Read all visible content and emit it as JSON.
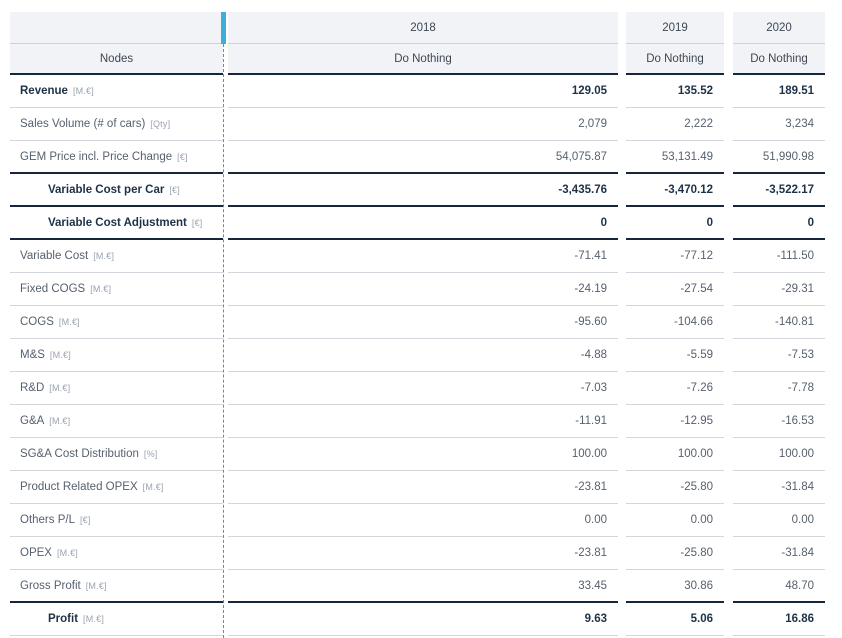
{
  "colors": {
    "accent_blue": "#3caede",
    "divider_blue": "#2e9fd0",
    "dark_navy": "#17273b",
    "header_bg": "#f2f3f6",
    "row_separator": "#d3d7dd",
    "bold_text": "#1d3147",
    "regular_text": "#57606d",
    "unit_text": "#9aa3b0"
  },
  "table": {
    "nodes_header": "Nodes",
    "scenario_label": "Do Nothing",
    "year_columns": [
      "2018",
      "2019",
      "2020"
    ],
    "rows": [
      {
        "label": "Revenue",
        "unit": "[M.€]",
        "style": "bold",
        "indent": false,
        "border_bottom": "light",
        "values": [
          "129.05",
          "135.52",
          "189.51"
        ]
      },
      {
        "label": "Sales Volume (# of cars)",
        "unit": "[Qty]",
        "style": "regular",
        "indent": false,
        "border_bottom": "light",
        "values": [
          "2,079",
          "2,222",
          "3,234"
        ]
      },
      {
        "label": "GEM Price incl. Price Change",
        "unit": "[€]",
        "style": "regular",
        "indent": false,
        "border_bottom": "dark",
        "values": [
          "54,075.87",
          "53,131.49",
          "51,990.98"
        ]
      },
      {
        "label": "Variable Cost per Car",
        "unit": "[€]",
        "style": "bold",
        "indent": true,
        "border_bottom": "dark",
        "values": [
          "-3,435.76",
          "-3,470.12",
          "-3,522.17"
        ]
      },
      {
        "label": "Variable Cost Adjustment",
        "unit": "[€]",
        "style": "bold",
        "indent": true,
        "border_bottom": "dark",
        "values": [
          "0",
          "0",
          "0"
        ]
      },
      {
        "label": "Variable Cost",
        "unit": "[M.€]",
        "style": "regular",
        "indent": false,
        "border_bottom": "light",
        "values": [
          "-71.41",
          "-77.12",
          "-111.50"
        ]
      },
      {
        "label": "Fixed COGS",
        "unit": "[M.€]",
        "style": "regular",
        "indent": false,
        "border_bottom": "light",
        "values": [
          "-24.19",
          "-27.54",
          "-29.31"
        ]
      },
      {
        "label": "COGS",
        "unit": "[M.€]",
        "style": "regular",
        "indent": false,
        "border_bottom": "light",
        "values": [
          "-95.60",
          "-104.66",
          "-140.81"
        ]
      },
      {
        "label": "M&S",
        "unit": "[M.€]",
        "style": "regular",
        "indent": false,
        "border_bottom": "light",
        "values": [
          "-4.88",
          "-5.59",
          "-7.53"
        ]
      },
      {
        "label": "R&D",
        "unit": "[M.€]",
        "style": "regular",
        "indent": false,
        "border_bottom": "light",
        "values": [
          "-7.03",
          "-7.26",
          "-7.78"
        ]
      },
      {
        "label": "G&A",
        "unit": "[M.€]",
        "style": "regular",
        "indent": false,
        "border_bottom": "light",
        "values": [
          "-11.91",
          "-12.95",
          "-16.53"
        ]
      },
      {
        "label": "SG&A Cost Distribution",
        "unit": "[%]",
        "style": "regular",
        "indent": false,
        "border_bottom": "light",
        "values": [
          "100.00",
          "100.00",
          "100.00"
        ]
      },
      {
        "label": "Product Related OPEX",
        "unit": "[M.€]",
        "style": "regular",
        "indent": false,
        "border_bottom": "light",
        "values": [
          "-23.81",
          "-25.80",
          "-31.84"
        ]
      },
      {
        "label": "Others P/L",
        "unit": "[€]",
        "style": "regular",
        "indent": false,
        "border_bottom": "light",
        "values": [
          "0.00",
          "0.00",
          "0.00"
        ]
      },
      {
        "label": "OPEX",
        "unit": "[M.€]",
        "style": "regular",
        "indent": false,
        "border_bottom": "light",
        "values": [
          "-23.81",
          "-25.80",
          "-31.84"
        ]
      },
      {
        "label": "Gross Profit",
        "unit": "[M.€]",
        "style": "regular",
        "indent": false,
        "border_bottom": "dark",
        "values": [
          "33.45",
          "30.86",
          "48.70"
        ]
      },
      {
        "label": "Profit",
        "unit": "[M.€]",
        "style": "bold",
        "indent": true,
        "border_bottom": "light",
        "values": [
          "9.63",
          "5.06",
          "16.86"
        ]
      }
    ]
  }
}
